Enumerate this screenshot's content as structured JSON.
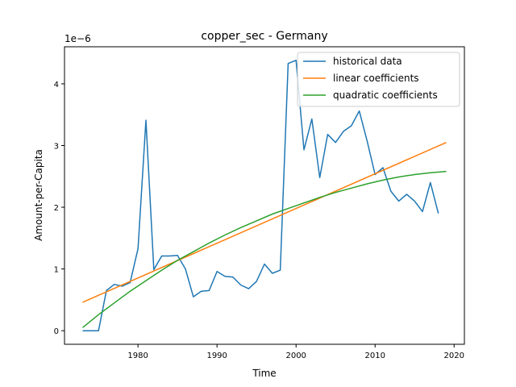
{
  "chart_data": {
    "type": "line",
    "title": "copper_sec - Germany",
    "xlabel": "Time",
    "ylabel": "Amount-per-Capita",
    "y_multiplier_label": "1e−6",
    "xlim": [
      1970.7,
      2021.3
    ],
    "ylim": [
      -0.22,
      4.6
    ],
    "x_ticks": [
      1980,
      1990,
      2000,
      2010,
      2020
    ],
    "y_ticks": [
      0,
      1,
      2,
      3,
      4
    ],
    "grid": false,
    "legend_position": "top-right",
    "series": [
      {
        "name": "historical data",
        "color": "#1f77b4",
        "x": [
          1973,
          1974,
          1975,
          1976,
          1977,
          1978,
          1979,
          1980,
          1981,
          1982,
          1983,
          1984,
          1985,
          1986,
          1987,
          1988,
          1989,
          1990,
          1991,
          1992,
          1993,
          1994,
          1995,
          1996,
          1997,
          1998,
          1999,
          2000,
          2001,
          2002,
          2003,
          2004,
          2005,
          2006,
          2007,
          2008,
          2009,
          2010,
          2011,
          2012,
          2013,
          2014,
          2015,
          2016,
          2017,
          2018
        ],
        "y": [
          0,
          0,
          0,
          0.65,
          0.75,
          0.72,
          0.78,
          1.33,
          3.41,
          0.99,
          1.21,
          1.21,
          1.22,
          1.0,
          0.55,
          0.64,
          0.65,
          0.96,
          0.88,
          0.87,
          0.74,
          0.68,
          0.8,
          1.08,
          0.93,
          0.98,
          4.33,
          4.38,
          2.93,
          3.43,
          2.48,
          3.18,
          3.05,
          3.23,
          3.32,
          3.56,
          3.07,
          2.53,
          2.64,
          2.26,
          2.1,
          2.21,
          2.1,
          1.93,
          2.4,
          1.9
        ]
      },
      {
        "name": "linear coefficients",
        "color": "#ff7f0e",
        "x": [
          1973,
          2019
        ],
        "y": [
          0.46,
          3.05
        ]
      },
      {
        "name": "quadratic coefficients",
        "color": "#2ca02c",
        "x": [
          1973,
          1975,
          1977,
          1979,
          1981,
          1983,
          1985,
          1987,
          1989,
          1991,
          1993,
          1995,
          1997,
          1999,
          2001,
          2003,
          2005,
          2007,
          2009,
          2011,
          2013,
          2015,
          2017,
          2019
        ],
        "y": [
          0.05,
          0.26,
          0.45,
          0.64,
          0.81,
          0.98,
          1.14,
          1.28,
          1.42,
          1.55,
          1.67,
          1.78,
          1.89,
          1.98,
          2.07,
          2.16,
          2.24,
          2.31,
          2.38,
          2.44,
          2.49,
          2.53,
          2.56,
          2.58
        ]
      }
    ]
  }
}
